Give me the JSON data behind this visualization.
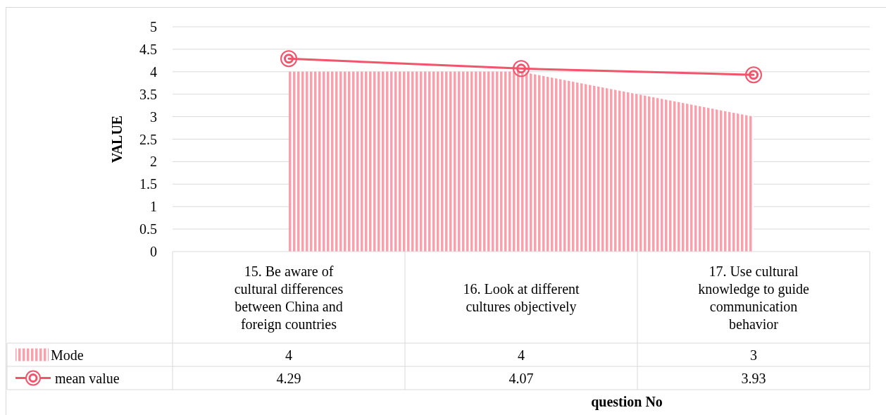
{
  "chart_data": {
    "type": "area",
    "categories": [
      "15. Be aware of cultural differences between China and foreign countries",
      "16. Look at different cultures objectively",
      "17. Use cultural knowledge to guide communication behavior"
    ],
    "series": [
      {
        "name": "Mode",
        "color": "#f7a1ad",
        "values": [
          4,
          4,
          3
        ],
        "value_labels": [
          "4",
          "4",
          "3"
        ]
      },
      {
        "name": "mean value",
        "type": "line",
        "color": "#f2546b",
        "values": [
          4.29,
          4.07,
          3.93
        ],
        "value_labels": [
          "4.29",
          "4.07",
          "3.93"
        ],
        "marker": "circle"
      }
    ],
    "ylim": [
      0,
      5
    ],
    "yticks": [
      0,
      0.5,
      1,
      1.5,
      2,
      2.5,
      3,
      3.5,
      4,
      4.5,
      5
    ],
    "ylabel": "VALUE",
    "xlabel": "question No",
    "grid": "y",
    "legend": "bottom"
  }
}
